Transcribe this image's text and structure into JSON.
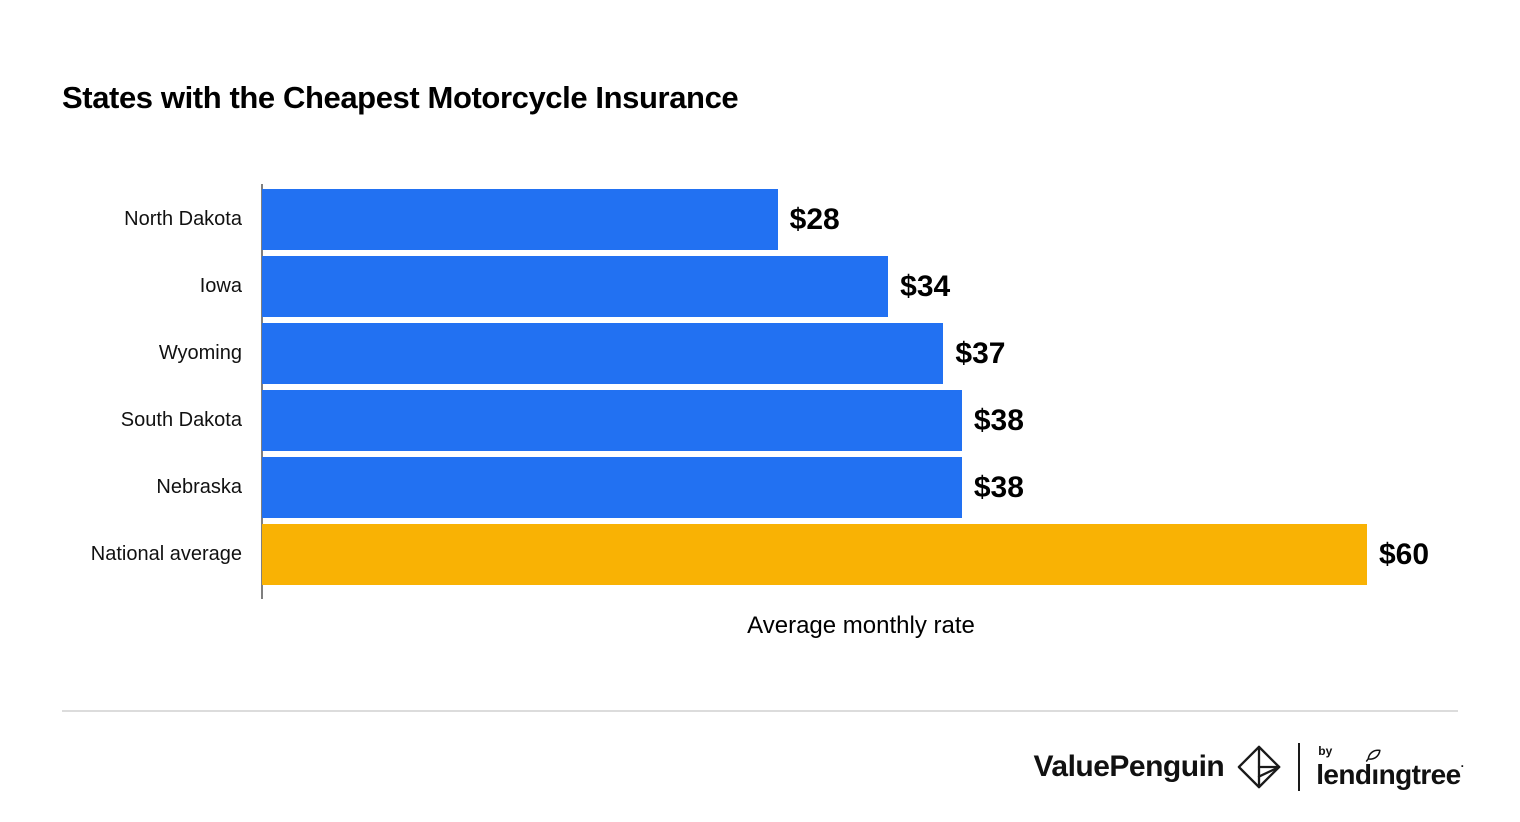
{
  "title": "States with the Cheapest Motorcycle Insurance",
  "chart_data": {
    "type": "bar",
    "orientation": "horizontal",
    "title": "States with the Cheapest Motorcycle Insurance",
    "categories": [
      "North Dakota",
      "Iowa",
      "Wyoming",
      "South Dakota",
      "Nebraska",
      "National average"
    ],
    "values": [
      28,
      34,
      37,
      38,
      38,
      60
    ],
    "value_labels": [
      "$28",
      "$34",
      "$37",
      "$38",
      "$38",
      "$60"
    ],
    "xlabel": "Average monthly rate",
    "ylabel": "",
    "xlim": [
      0,
      60
    ],
    "grid": false,
    "legend": "none",
    "bar_colors": [
      "#2271F2",
      "#2271F2",
      "#2271F2",
      "#2271F2",
      "#2271F2",
      "#F9B204"
    ],
    "highlight_category": "National average"
  },
  "colors": {
    "bar_blue": "#2271F2",
    "bar_orange": "#F9B204",
    "axis_line": "#7f7f7f",
    "divider": "#dcdcdc",
    "text": "#0d0d0d"
  },
  "footer": {
    "brand": "ValuePenguin",
    "by_label": "by",
    "partner_pre": "lend",
    "partner_i": "ı",
    "partner_post": "ngtree",
    "trademark": "·"
  }
}
